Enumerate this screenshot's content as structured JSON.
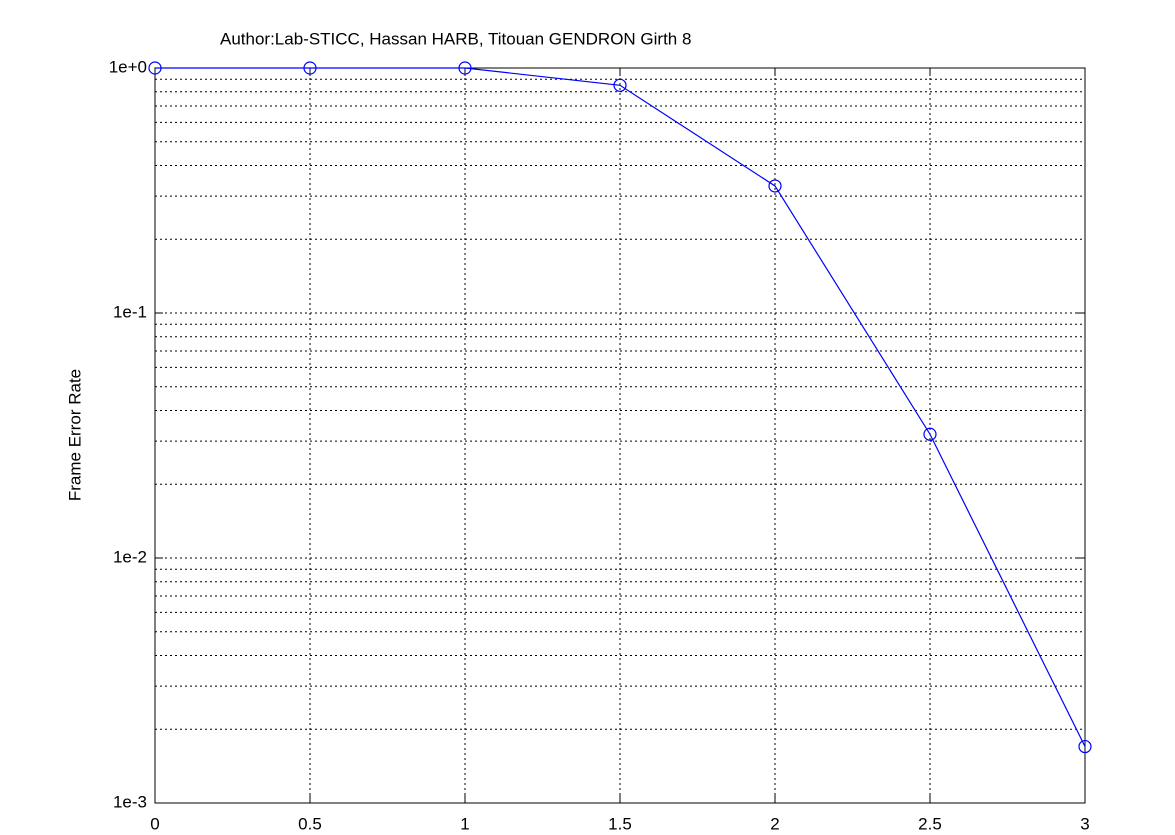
{
  "chart_data": {
    "type": "line",
    "title": "Author:Lab-STICC, Hassan HARB, Titouan GENDRON Girth 8",
    "y_label": "Frame Error Rate",
    "x": [
      0,
      0.5,
      1,
      1.5,
      2,
      2.5,
      3
    ],
    "series": [
      {
        "color": "#0000ff",
        "marker": "circle",
        "values": [
          1.0,
          1.0,
          1.0,
          0.85,
          0.33,
          0.032,
          0.0017
        ]
      }
    ],
    "xlim": [
      0,
      3
    ],
    "xticks": [
      0,
      0.5,
      1,
      1.5,
      2,
      2.5,
      3
    ],
    "ylim": [
      0.001,
      1
    ],
    "yscale": "log",
    "yticks": [
      {
        "value": 1,
        "label": "1e+0"
      },
      {
        "value": 0.1,
        "label": "1e-1"
      },
      {
        "value": 0.01,
        "label": "1e-2"
      },
      {
        "value": 0.001,
        "label": "1e-3"
      }
    ],
    "yminorticks": [
      0.002,
      0.003,
      0.004,
      0.005,
      0.006,
      0.007,
      0.008,
      0.009,
      0.02,
      0.03,
      0.04,
      0.05,
      0.06,
      0.07,
      0.08,
      0.09,
      0.2,
      0.3,
      0.4,
      0.5,
      0.6,
      0.7,
      0.8,
      0.9
    ],
    "grid": true
  }
}
